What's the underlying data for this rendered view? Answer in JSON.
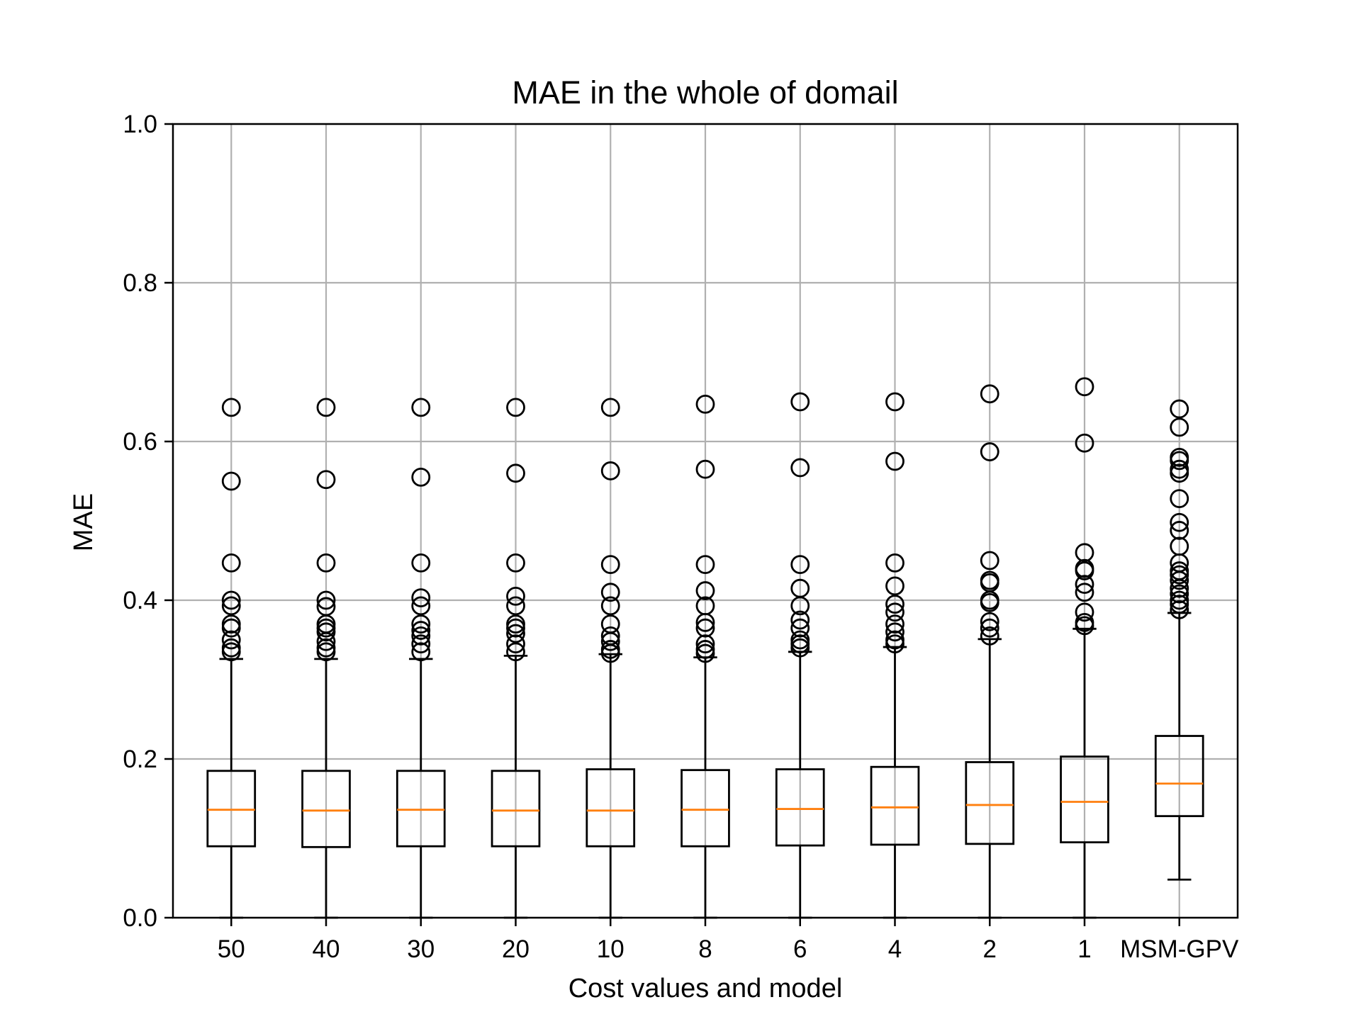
{
  "chart_data": {
    "type": "box",
    "title": "MAE in the whole of domail",
    "xlabel": "Cost values and model",
    "ylabel": "MAE",
    "ylim": [
      0.0,
      1.0
    ],
    "yticks": [
      "0.0",
      "0.2",
      "0.4",
      "0.6",
      "0.8",
      "1.0"
    ],
    "grid": true,
    "colors": {
      "median": "#ff7f0e",
      "box": "#000000",
      "grid": "#b0b0b0"
    },
    "categories": [
      "50",
      "40",
      "30",
      "20",
      "10",
      "8",
      "6",
      "4",
      "2",
      "1",
      "MSM-GPV"
    ],
    "boxes": [
      {
        "whisker_low": 0.0,
        "q1": 0.09,
        "median": 0.136,
        "q3": 0.185,
        "whisker_high": 0.326,
        "fliers": [
          0.643,
          0.55,
          0.447,
          0.4,
          0.393,
          0.37,
          0.365,
          0.35,
          0.34,
          0.335
        ]
      },
      {
        "whisker_low": 0.0,
        "q1": 0.089,
        "median": 0.135,
        "q3": 0.185,
        "whisker_high": 0.326,
        "fliers": [
          0.643,
          0.552,
          0.447,
          0.4,
          0.392,
          0.37,
          0.365,
          0.36,
          0.348,
          0.34,
          0.335
        ]
      },
      {
        "whisker_low": 0.0,
        "q1": 0.09,
        "median": 0.136,
        "q3": 0.185,
        "whisker_high": 0.326,
        "fliers": [
          0.643,
          0.555,
          0.447,
          0.403,
          0.393,
          0.37,
          0.362,
          0.355,
          0.345,
          0.335
        ]
      },
      {
        "whisker_low": 0.0,
        "q1": 0.09,
        "median": 0.135,
        "q3": 0.185,
        "whisker_high": 0.33,
        "fliers": [
          0.643,
          0.56,
          0.447,
          0.405,
          0.393,
          0.37,
          0.365,
          0.358,
          0.345,
          0.335
        ]
      },
      {
        "whisker_low": 0.0,
        "q1": 0.09,
        "median": 0.135,
        "q3": 0.187,
        "whisker_high": 0.332,
        "fliers": [
          0.643,
          0.563,
          0.445,
          0.41,
          0.393,
          0.37,
          0.355,
          0.348,
          0.338,
          0.333
        ]
      },
      {
        "whisker_low": 0.0,
        "q1": 0.09,
        "median": 0.136,
        "q3": 0.186,
        "whisker_high": 0.328,
        "fliers": [
          0.647,
          0.565,
          0.445,
          0.412,
          0.393,
          0.372,
          0.365,
          0.345,
          0.338,
          0.333
        ]
      },
      {
        "whisker_low": 0.0,
        "q1": 0.091,
        "median": 0.137,
        "q3": 0.187,
        "whisker_high": 0.335,
        "fliers": [
          0.65,
          0.567,
          0.445,
          0.415,
          0.393,
          0.375,
          0.365,
          0.35,
          0.345,
          0.34
        ]
      },
      {
        "whisker_low": 0.0,
        "q1": 0.092,
        "median": 0.139,
        "q3": 0.19,
        "whisker_high": 0.341,
        "fliers": [
          0.65,
          0.575,
          0.447,
          0.418,
          0.395,
          0.385,
          0.37,
          0.36,
          0.35,
          0.345
        ]
      },
      {
        "whisker_low": 0.0,
        "q1": 0.093,
        "median": 0.142,
        "q3": 0.196,
        "whisker_high": 0.351,
        "fliers": [
          0.66,
          0.587,
          0.45,
          0.425,
          0.422,
          0.4,
          0.397,
          0.373,
          0.365,
          0.355
        ]
      },
      {
        "whisker_low": 0.0,
        "q1": 0.095,
        "median": 0.146,
        "q3": 0.203,
        "whisker_high": 0.364,
        "fliers": [
          0.669,
          0.598,
          0.46,
          0.44,
          0.437,
          0.42,
          0.41,
          0.385,
          0.372,
          0.368
        ]
      },
      {
        "whisker_low": 0.048,
        "q1": 0.128,
        "median": 0.169,
        "q3": 0.229,
        "whisker_high": 0.384,
        "fliers": [
          0.641,
          0.618,
          0.58,
          0.576,
          0.565,
          0.56,
          0.528,
          0.498,
          0.488,
          0.468,
          0.447,
          0.437,
          0.432,
          0.425,
          0.415,
          0.408,
          0.4,
          0.395,
          0.388
        ]
      }
    ]
  }
}
